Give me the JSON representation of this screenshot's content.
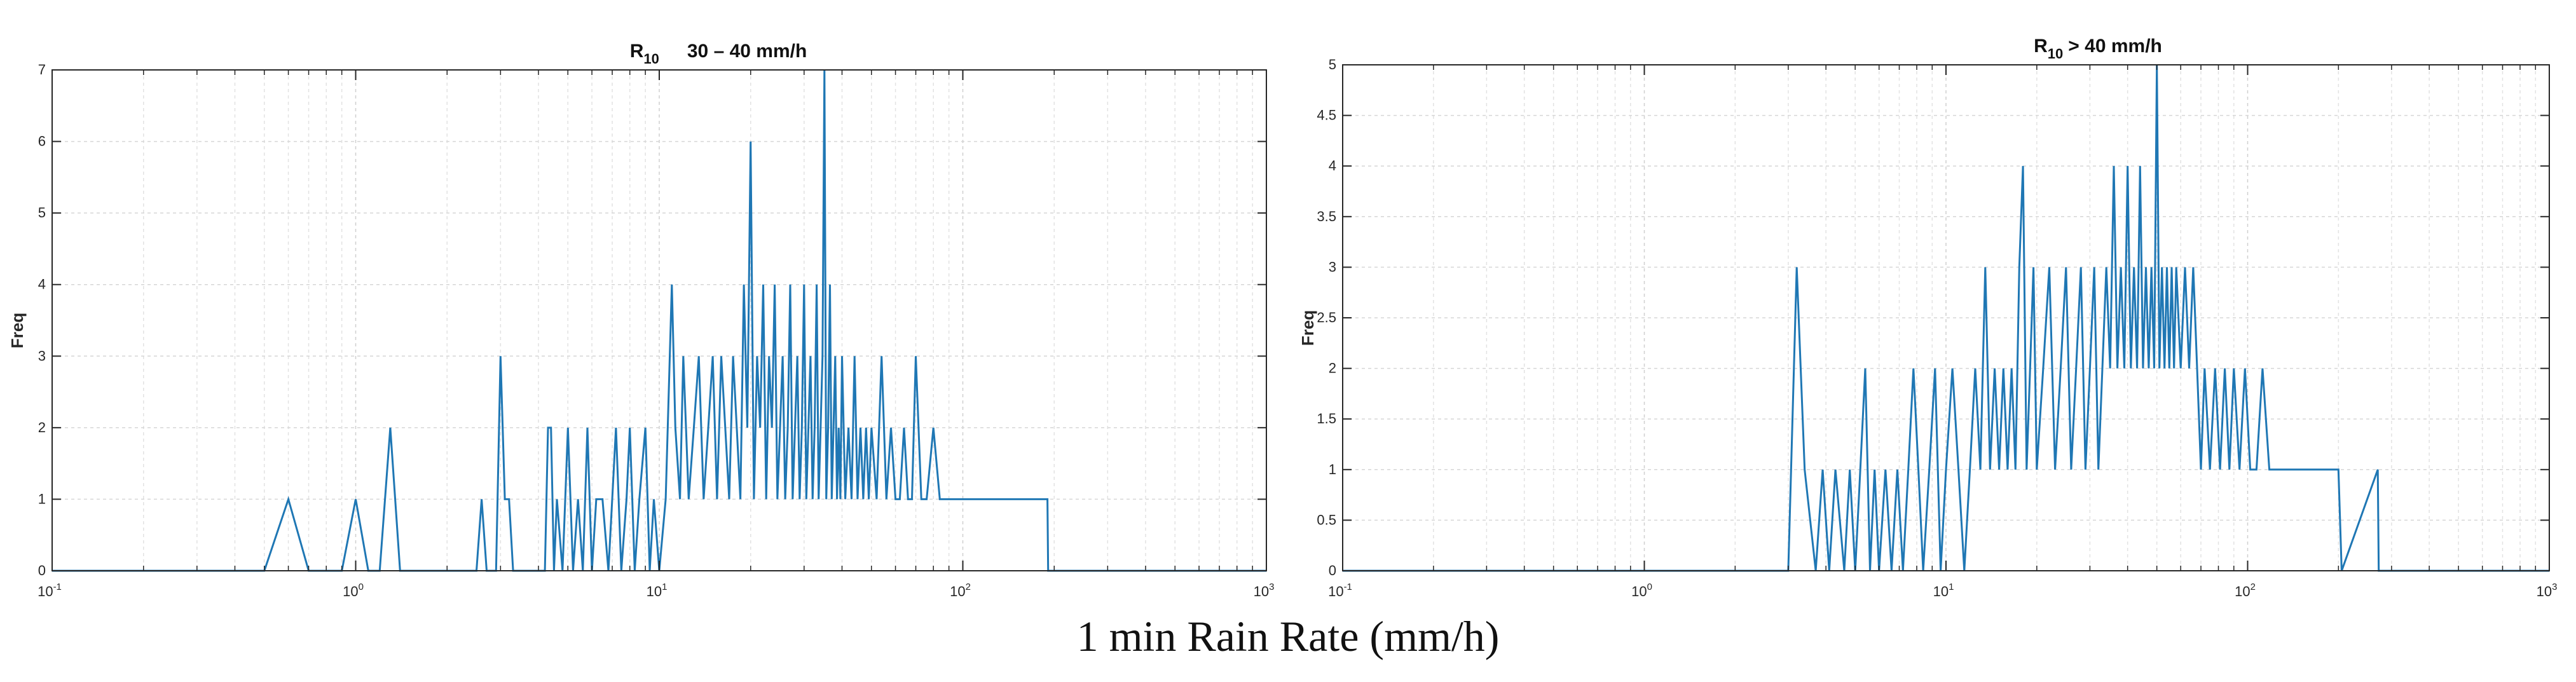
{
  "figure": {
    "shared_xlabel": "1 min Rain Rate (mm/h)",
    "line_color": "#1f77b4"
  },
  "chart_data": [
    {
      "type": "line",
      "title": {
        "main": "R",
        "sub": "10",
        "suffix": "30 – 40 mm/h"
      },
      "ylabel": "Freq",
      "xlabel": "",
      "xscale": "log",
      "xlim": [
        0.1,
        1000
      ],
      "ylim": [
        0,
        7
      ],
      "yticks": [
        "0",
        "1",
        "2",
        "3",
        "4",
        "5",
        "6",
        "7"
      ],
      "xticks": [
        {
          "base": "10",
          "exp": "-1"
        },
        {
          "base": "10",
          "exp": "0"
        },
        {
          "base": "10",
          "exp": "1"
        },
        {
          "base": "10",
          "exp": "2"
        },
        {
          "base": "10",
          "exp": "3"
        }
      ],
      "grid": true,
      "series": [
        {
          "x": [
            0.1,
            0.5,
            0.6,
            0.7,
            0.9,
            1.0,
            1.1,
            1.2,
            1.3,
            1.4,
            2.0,
            2.5,
            2.6,
            2.7,
            2.9,
            3.0,
            3.1,
            3.2,
            3.3,
            3.4,
            4.2,
            4.3,
            4.4,
            4.5,
            4.6,
            4.8,
            4.9,
            5.0,
            5.2,
            5.4,
            5.6,
            5.8,
            6.0,
            6.2,
            6.5,
            6.8,
            7.0,
            7.2,
            7.5,
            7.8,
            8.0,
            8.3,
            8.6,
            9.0,
            9.3,
            9.6,
            10.0,
            10.5,
            11.0,
            11.3,
            11.7,
            12.0,
            12.5,
            13.0,
            13.5,
            14.0,
            14.5,
            15.0,
            15.5,
            16.0,
            16.5,
            17.0,
            17.5,
            18.0,
            18.5,
            19.0,
            19.5,
            20.0,
            20.5,
            21.0,
            21.5,
            22.0,
            22.5,
            23.0,
            23.5,
            24.0,
            24.5,
            25.0,
            25.5,
            26.0,
            26.5,
            27.0,
            27.5,
            28.0,
            28.5,
            29.0,
            29.5,
            30.0,
            30.5,
            31.0,
            31.5,
            32.0,
            32.5,
            33.0,
            33.5,
            34.0,
            34.5,
            35.0,
            35.5,
            36.0,
            36.5,
            37.0,
            37.5,
            38.0,
            38.5,
            39.0,
            39.5,
            40.0,
            41.0,
            42.0,
            43.0,
            44.0,
            45.0,
            46.0,
            47.0,
            48.0,
            49.0,
            50.0,
            52.0,
            54.0,
            56.0,
            58.0,
            60.0,
            62.0,
            64.0,
            66.0,
            68.0,
            70.0,
            73.0,
            76.0,
            80.0,
            84.0,
            88.0,
            92.0,
            96.0,
            100.0,
            105.0,
            110.0,
            115.0,
            120.0,
            130.0,
            140.0,
            150.0,
            160.0,
            170.0,
            180.0,
            190.0,
            191.0,
            1000.0
          ],
          "y": [
            0,
            0,
            1,
            0,
            0,
            1,
            0,
            0,
            2,
            0,
            0,
            0,
            1,
            0,
            0,
            3,
            1,
            1,
            0,
            0,
            0,
            2,
            2,
            0,
            1,
            0,
            1,
            2,
            0,
            1,
            0,
            2,
            0,
            1,
            1,
            0,
            1,
            2,
            0,
            1,
            2,
            0,
            1,
            2,
            0,
            1,
            0,
            1,
            4,
            2,
            1,
            3,
            1,
            2,
            3,
            1,
            2,
            3,
            1,
            3,
            2,
            1,
            3,
            2,
            1,
            4,
            2,
            6,
            1,
            3,
            2,
            4,
            1,
            3,
            2,
            4,
            1,
            2,
            3,
            1,
            2,
            4,
            1,
            2,
            3,
            1,
            2,
            4,
            1,
            2,
            3,
            1,
            2,
            4,
            1,
            2,
            3,
            7,
            1,
            2,
            4,
            1,
            2,
            3,
            1,
            2,
            1,
            3,
            1,
            2,
            1,
            3,
            1,
            2,
            1,
            2,
            1,
            2,
            1,
            3,
            1,
            2,
            1,
            1,
            2,
            1,
            1,
            3,
            1,
            1,
            2,
            1,
            1,
            1,
            1,
            1,
            1,
            1,
            1,
            1,
            1,
            1,
            1,
            1,
            1,
            1,
            1,
            0,
            0
          ]
        }
      ]
    },
    {
      "type": "line",
      "title": {
        "main": "R",
        "sub": "10",
        "suffix": "> 40 mm/h"
      },
      "ylabel": "Freq",
      "xlabel": "",
      "xscale": "log",
      "xlim": [
        0.1,
        1000
      ],
      "ylim": [
        0,
        5
      ],
      "yticks": [
        "0",
        "0.5",
        "1",
        "1.5",
        "2",
        "2.5",
        "3",
        "3.5",
        "4",
        "4.5",
        "5"
      ],
      "xticks": [
        {
          "base": "10",
          "exp": "-1"
        },
        {
          "base": "10",
          "exp": "0"
        },
        {
          "base": "10",
          "exp": "1"
        },
        {
          "base": "10",
          "exp": "2"
        },
        {
          "base": "10",
          "exp": "3"
        }
      ],
      "grid": true,
      "series": [
        {
          "x": [
            0.1,
            3.0,
            3.2,
            3.4,
            3.7,
            3.9,
            4.1,
            4.3,
            4.6,
            4.8,
            5.0,
            5.2,
            5.4,
            5.6,
            5.8,
            6.0,
            6.3,
            6.6,
            6.9,
            7.2,
            7.5,
            7.8,
            8.1,
            8.4,
            8.8,
            9.2,
            9.6,
            10.0,
            10.5,
            11.0,
            11.5,
            12.0,
            12.5,
            13.0,
            13.5,
            14.0,
            14.5,
            15.0,
            15.5,
            16.0,
            16.5,
            17.0,
            17.5,
            18.0,
            18.5,
            19.0,
            19.5,
            20.0,
            21.0,
            22.0,
            23.0,
            24.0,
            25.0,
            26.0,
            27.0,
            28.0,
            29.0,
            30.0,
            31.0,
            32.0,
            33.0,
            34.0,
            35.0,
            36.0,
            37.0,
            38.0,
            39.0,
            40.0,
            41.0,
            42.0,
            43.0,
            44.0,
            45.0,
            46.0,
            47.0,
            48.0,
            49.0,
            50.0,
            51.0,
            52.0,
            53.0,
            54.0,
            55.0,
            56.0,
            57.0,
            58.0,
            60.0,
            62.0,
            64.0,
            66.0,
            68.0,
            70.0,
            72.0,
            75.0,
            78.0,
            81.0,
            84.0,
            87.0,
            90.0,
            94.0,
            98.0,
            102.0,
            107.0,
            112.0,
            118.0,
            124.0,
            130.0,
            140.0,
            150.0,
            160.0,
            170.0,
            180.0,
            190.0,
            200.0,
            205.0,
            270.0,
            272.0,
            1000.0
          ],
          "y": [
            0,
            0,
            3,
            1,
            0,
            1,
            0,
            1,
            0,
            1,
            0,
            1,
            2,
            0,
            1,
            0,
            1,
            0,
            1,
            0,
            1,
            2,
            1,
            0,
            1,
            2,
            0,
            1,
            2,
            1,
            0,
            1,
            2,
            1,
            3,
            1,
            2,
            1,
            2,
            1,
            2,
            1,
            3,
            4,
            1,
            2,
            3,
            1,
            2,
            3,
            1,
            2,
            3,
            1,
            2,
            3,
            1,
            2,
            3,
            1,
            2,
            3,
            2,
            4,
            2,
            3,
            2,
            4,
            2,
            3,
            2,
            4,
            2,
            3,
            2,
            3,
            2,
            5,
            2,
            3,
            2,
            3,
            2,
            3,
            2,
            3,
            2,
            3,
            2,
            3,
            2,
            1,
            2,
            1,
            2,
            1,
            2,
            1,
            2,
            1,
            2,
            1,
            1,
            2,
            1,
            1,
            1,
            1,
            1,
            1,
            1,
            1,
            1,
            1,
            0,
            1,
            0,
            0
          ]
        }
      ]
    }
  ]
}
